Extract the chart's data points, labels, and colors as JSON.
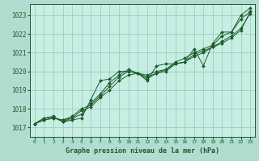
{
  "title": "Graphe pression niveau de la mer (hPa)",
  "background_color": "#b0ddd0",
  "plot_bg_color": "#c8eee4",
  "grid_color": "#90c8b8",
  "line_color": "#1a5c2a",
  "tick_color": "#1a5c2a",
  "ylim": [
    1016.5,
    1023.6
  ],
  "xlim": [
    -0.5,
    23.5
  ],
  "yticks": [
    1017,
    1018,
    1019,
    1020,
    1021,
    1022,
    1023
  ],
  "xticks": [
    0,
    1,
    2,
    3,
    4,
    5,
    6,
    7,
    8,
    9,
    10,
    11,
    12,
    13,
    14,
    15,
    16,
    17,
    18,
    19,
    20,
    21,
    22,
    23
  ],
  "series": [
    [
      1017.2,
      1017.5,
      1017.55,
      1017.3,
      1017.4,
      1017.5,
      1018.5,
      1019.5,
      1019.6,
      1020.0,
      1020.0,
      1019.9,
      1019.5,
      1020.3,
      1020.4,
      1020.4,
      1020.5,
      1021.2,
      1020.3,
      1021.5,
      1022.1,
      1022.1,
      1023.0,
      1023.4
    ],
    [
      1017.2,
      1017.5,
      1017.6,
      1017.3,
      1017.5,
      1017.7,
      1018.3,
      1018.8,
      1019.4,
      1019.8,
      1020.1,
      1019.9,
      1019.8,
      1020.0,
      1020.1,
      1020.5,
      1020.7,
      1021.0,
      1021.2,
      1021.4,
      1021.9,
      1022.1,
      1022.8,
      1023.2
    ],
    [
      1017.2,
      1017.4,
      1017.5,
      1017.4,
      1017.6,
      1018.0,
      1018.2,
      1018.7,
      1019.2,
      1019.7,
      1020.0,
      1019.9,
      1019.6,
      1019.9,
      1020.1,
      1020.4,
      1020.5,
      1020.9,
      1021.1,
      1021.3,
      1021.5,
      1021.8,
      1022.2,
      1023.2
    ],
    [
      1017.2,
      1017.4,
      1017.5,
      1017.4,
      1017.5,
      1017.9,
      1018.1,
      1018.6,
      1019.0,
      1019.5,
      1019.8,
      1019.9,
      1019.7,
      1019.9,
      1020.0,
      1020.4,
      1020.5,
      1020.8,
      1021.0,
      1021.3,
      1021.6,
      1021.9,
      1022.3,
      1023.1
    ]
  ]
}
